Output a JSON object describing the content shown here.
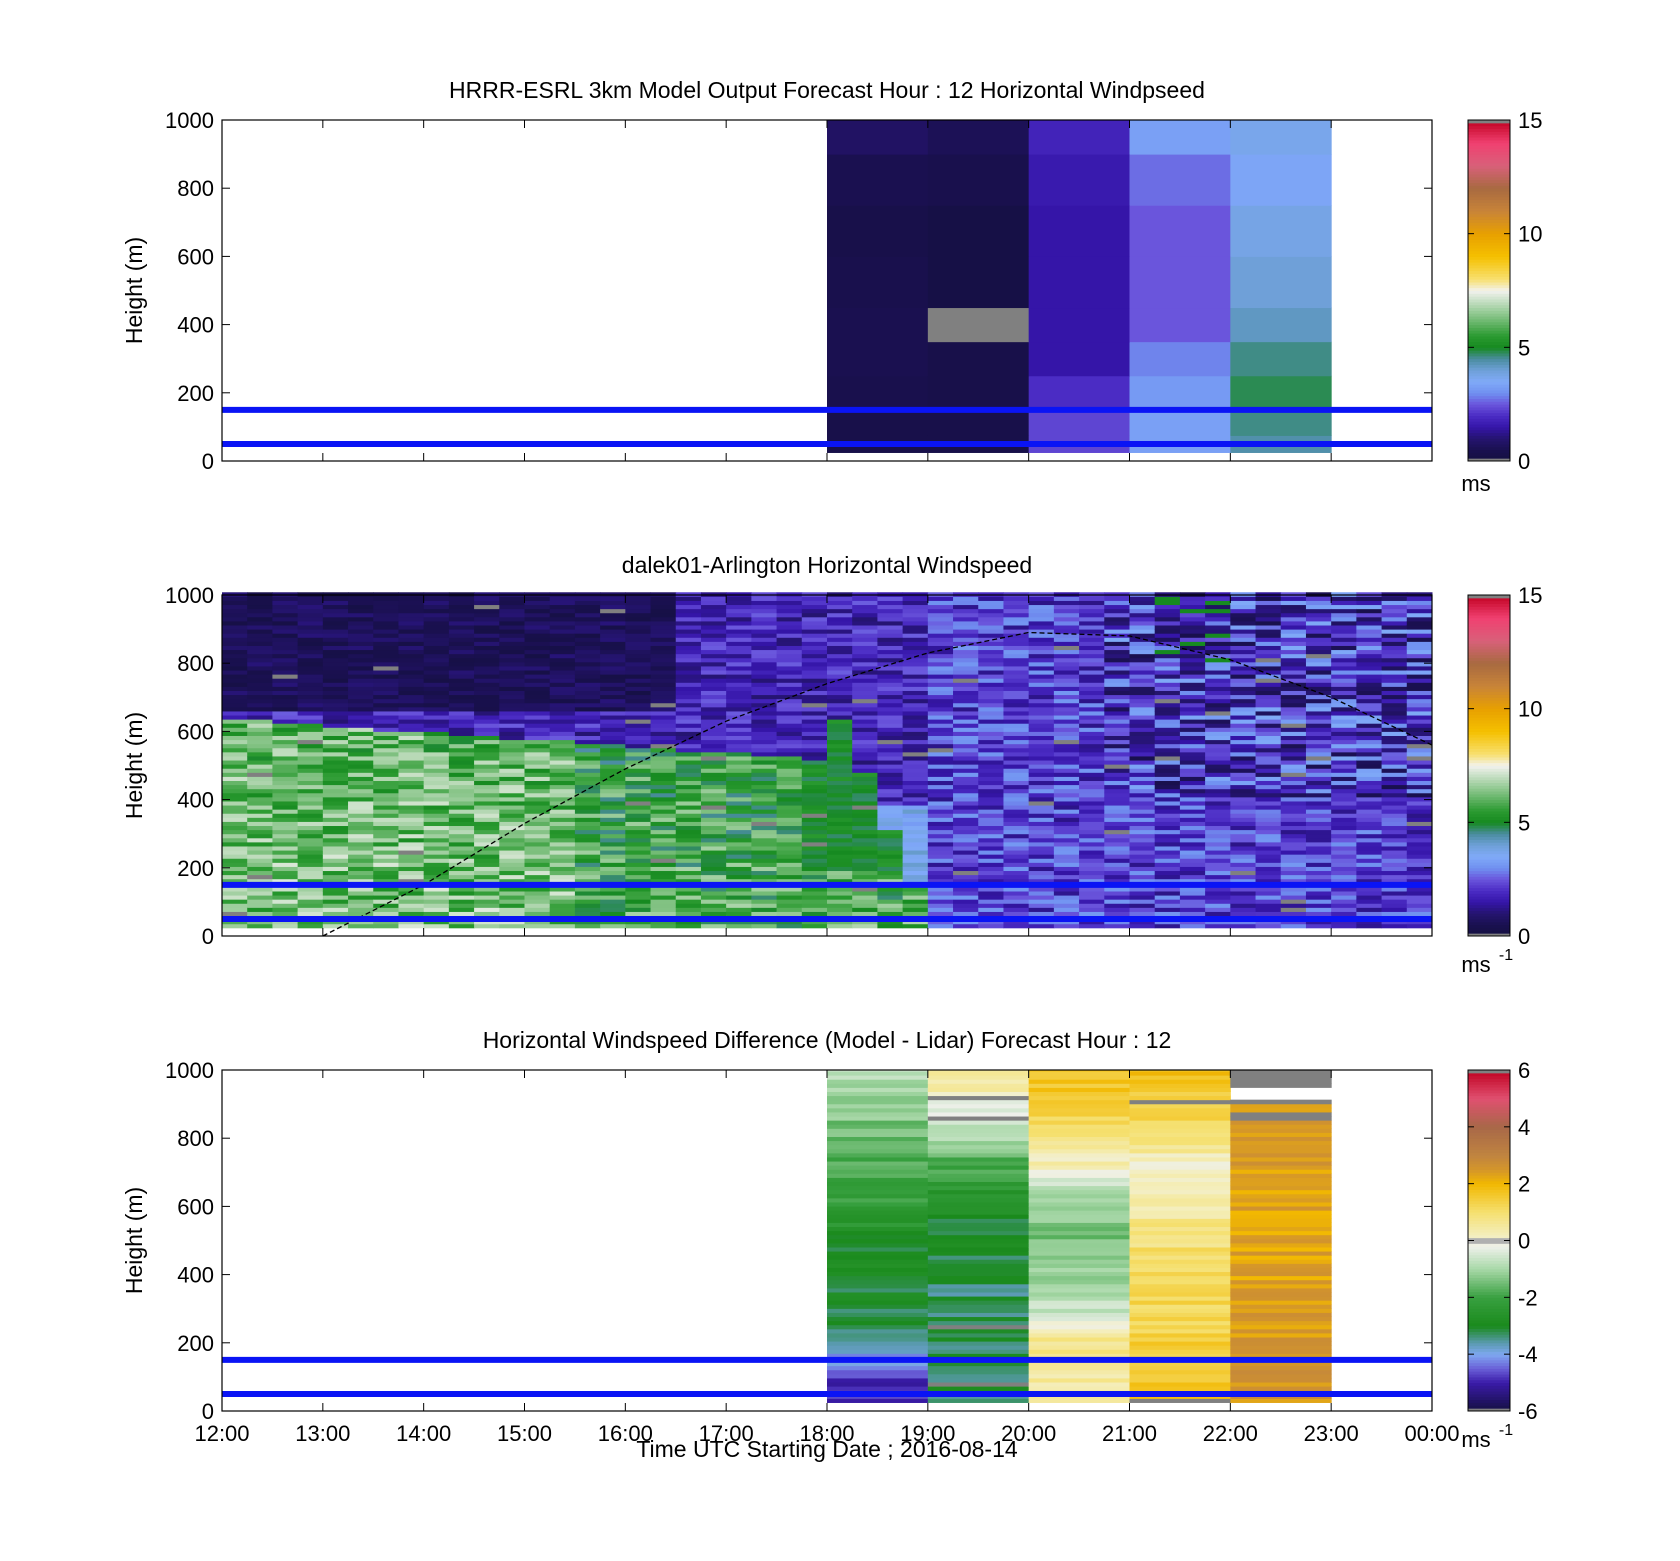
{
  "figure": {
    "time_ticks": [
      "12:00",
      "13:00",
      "14:00",
      "15:00",
      "16:00",
      "17:00",
      "18:00",
      "19:00",
      "20:00",
      "21:00",
      "22:00",
      "23:00",
      "00:00"
    ],
    "xlabel": "Time UTC  Starting Date ; 2016-08-14",
    "ylabel": "Height (m)",
    "height_ticks": [
      0,
      200,
      400,
      600,
      800,
      1000
    ],
    "reference_heights_m": [
      50,
      150
    ],
    "reference_line_color": "#0a14f5"
  },
  "chart_data": [
    {
      "type": "heatmap",
      "title": "HRRR-ESRL 3km Model Output   Forecast Hour : 12 Horizontal Windpseed",
      "xlabel": "",
      "ylabel": "Height (m)",
      "xlim": [
        "12:00",
        "00:00"
      ],
      "ylim": [
        0,
        1000
      ],
      "columns": [
        "18:00",
        "19:00",
        "20:00",
        "21:00",
        "22:00"
      ],
      "row_bottoms_m": [
        25,
        75,
        150,
        250,
        350,
        450,
        600,
        750,
        900
      ],
      "values_ms": [
        [
          0.3,
          0.3,
          2.3,
          3.3,
          4.4
        ],
        [
          0.3,
          0.3,
          2.3,
          3.3,
          4.6
        ],
        [
          0.4,
          0.3,
          2.0,
          3.2,
          4.8
        ],
        [
          0.5,
          0.3,
          1.5,
          2.9,
          4.6
        ],
        [
          0.5,
          null,
          1.5,
          2.5,
          4.2
        ],
        [
          0.4,
          0.2,
          1.5,
          2.5,
          4.0
        ],
        [
          0.3,
          0.2,
          1.5,
          2.5,
          3.8
        ],
        [
          0.5,
          0.4,
          1.6,
          2.7,
          3.4
        ],
        [
          0.8,
          0.6,
          1.8,
          3.3,
          3.7
        ]
      ],
      "colorbar": {
        "min": 0,
        "max": 15,
        "ticks": [
          0,
          5,
          10,
          15
        ],
        "unit_base": "ms",
        "unit_exp": ""
      }
    },
    {
      "type": "heatmap",
      "title": "dalek01-Arlington  Horizontal Windspeed",
      "xlabel": "",
      "ylabel": "Height (m)",
      "xlim": [
        "12:00",
        "00:00"
      ],
      "ylim": [
        0,
        1000
      ],
      "time_range": [
        "12:00",
        "23:55"
      ],
      "annotation": "dashed curve (boundary layer height estimate)",
      "boundary_layer_curve": {
        "x": [
          "13:00",
          "14:00",
          "15:00",
          "16:00",
          "17:00",
          "18:00",
          "19:00",
          "20:00",
          "21:00",
          "22:00",
          "23:00",
          "00:00"
        ],
        "y_m": [
          0,
          150,
          330,
          490,
          630,
          740,
          830,
          890,
          880,
          810,
          700,
          560
        ]
      },
      "colorbar": {
        "min": 0,
        "max": 15,
        "ticks": [
          0,
          5,
          10,
          15
        ],
        "unit_base": "ms",
        "unit_exp": "-1"
      }
    },
    {
      "type": "heatmap",
      "title": "Horizontal Windspeed Difference (Model - Lidar) Forecast Hour : 12",
      "xlabel": "Time UTC  Starting Date ; 2016-08-14",
      "ylabel": "Height (m)",
      "xlim": [
        "12:00",
        "00:00"
      ],
      "ylim": [
        0,
        1000
      ],
      "columns": [
        "18:00",
        "19:00",
        "20:00",
        "21:00",
        "22:00"
      ],
      "profiles_ms": [
        {
          "h_m": [
            25,
            60,
            150,
            250,
            350,
            450,
            600,
            750,
            900,
            1000
          ],
          "v": [
            -5,
            -5,
            -4,
            -3.2,
            -3,
            -3,
            -2.2,
            -1.7,
            -1.2,
            -0.8
          ]
        },
        {
          "h_m": [
            25,
            150,
            300,
            450,
            600,
            750,
            850,
            950,
            1000
          ],
          "v": [
            -3.2,
            -3.2,
            -3.3,
            -3.2,
            -2.8,
            -1.5,
            -0.5,
            0.4,
            0.8
          ]
        },
        {
          "h_m": [
            25,
            100,
            200,
            300,
            400,
            500,
            600,
            700,
            800,
            900,
            1000
          ],
          "v": [
            0.4,
            0.6,
            0.7,
            -0.7,
            -1.1,
            -1.4,
            -1.3,
            0,
            1.0,
            1.6,
            1.8
          ]
        },
        {
          "h_m": [
            25,
            150,
            300,
            450,
            600,
            700,
            800,
            900,
            1000
          ],
          "v": [
            1.6,
            1.5,
            1.2,
            1.0,
            0.5,
            0,
            0.8,
            1.5,
            1.8
          ]
        },
        {
          "h_m": [
            25,
            200,
            400,
            600,
            800,
            900,
            935,
            1000
          ],
          "v": [
            2.6,
            2.5,
            2.3,
            2.3,
            2.5,
            2.6,
            null,
            2.6
          ]
        }
      ],
      "colorbar": {
        "min": -6,
        "max": 6,
        "ticks": [
          -6,
          -4,
          -2,
          0,
          2,
          4,
          6
        ],
        "unit_base": "ms",
        "unit_exp": "-1"
      }
    }
  ]
}
